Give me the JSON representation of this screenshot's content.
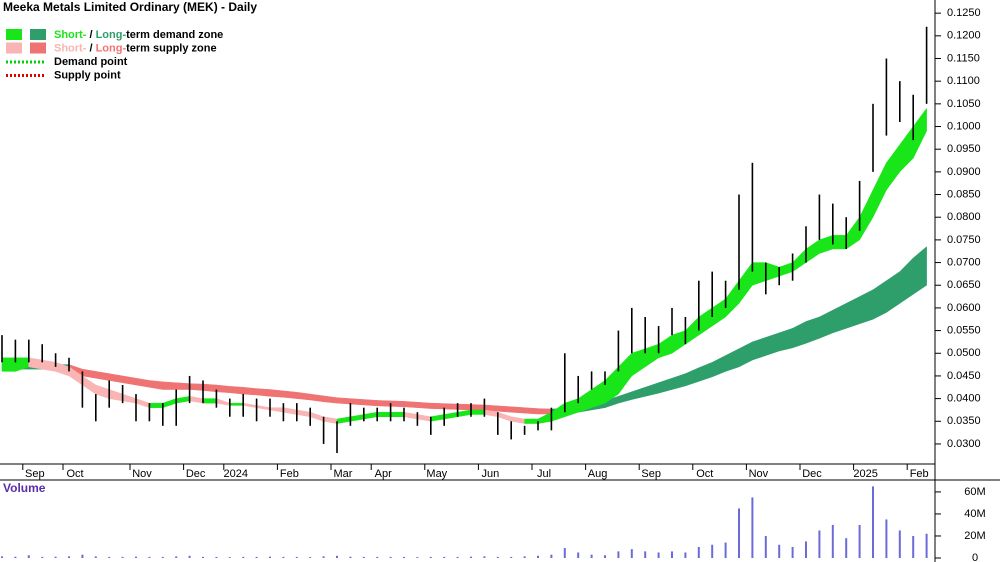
{
  "chart_data": [
    {
      "type": "ohlc",
      "title": "Meeka Metals Limited Ordinary (MEK) - Daily",
      "color": "#000000",
      "categories": [
        null,
        null,
        "Sep",
        null,
        null,
        "Oct",
        null,
        null,
        null,
        null,
        "Nov",
        null,
        null,
        null,
        "Dec",
        null,
        null,
        "2024",
        null,
        null,
        null,
        "Feb",
        null,
        null,
        null,
        "Mar",
        null,
        null,
        "Apr",
        null,
        null,
        null,
        "May",
        null,
        null,
        null,
        "Jun",
        null,
        null,
        null,
        "Jul",
        null,
        null,
        null,
        "Aug",
        null,
        null,
        null,
        "Sep",
        null,
        null,
        null,
        "Oct",
        null,
        null,
        null,
        "Nov",
        null,
        null,
        null,
        "Dec",
        null,
        null,
        null,
        "2025",
        null,
        null,
        null,
        "Feb",
        null
      ],
      "high": [
        0.054,
        0.053,
        0.053,
        0.052,
        0.05,
        0.049,
        0.046,
        0.041,
        0.044,
        0.043,
        0.041,
        0.039,
        0.039,
        0.042,
        0.045,
        0.044,
        0.042,
        0.04,
        0.041,
        0.04,
        0.04,
        0.039,
        0.039,
        0.038,
        0.036,
        0.035,
        0.039,
        0.038,
        0.038,
        0.039,
        0.038,
        0.037,
        0.036,
        0.038,
        0.039,
        0.039,
        0.04,
        0.037,
        0.035,
        0.034,
        0.035,
        0.038,
        0.05,
        0.045,
        0.046,
        0.046,
        0.055,
        0.06,
        0.058,
        0.056,
        0.06,
        0.058,
        0.066,
        0.068,
        0.066,
        0.085,
        0.092,
        0.07,
        0.069,
        0.072,
        0.078,
        0.085,
        0.083,
        0.08,
        0.088,
        0.105,
        0.115,
        0.11,
        0.107,
        0.122
      ],
      "low": [
        0.048,
        0.048,
        0.048,
        0.048,
        0.047,
        0.046,
        0.038,
        0.035,
        0.038,
        0.039,
        0.035,
        0.035,
        0.034,
        0.034,
        0.039,
        0.039,
        0.038,
        0.036,
        0.036,
        0.035,
        0.036,
        0.035,
        0.035,
        0.034,
        0.03,
        0.028,
        0.034,
        0.035,
        0.035,
        0.035,
        0.035,
        0.034,
        0.032,
        0.034,
        0.036,
        0.036,
        0.036,
        0.032,
        0.031,
        0.032,
        0.033,
        0.033,
        0.037,
        0.039,
        0.042,
        0.043,
        0.046,
        0.05,
        0.05,
        0.05,
        0.054,
        0.052,
        0.055,
        0.058,
        0.06,
        0.064,
        0.068,
        0.063,
        0.065,
        0.066,
        0.07,
        0.075,
        0.074,
        0.073,
        0.077,
        0.09,
        0.098,
        0.101,
        0.097,
        0.105
      ],
      "short_zone": {
        "upper": [
          0.049,
          0.049,
          0.049,
          0.0485,
          0.048,
          0.047,
          0.045,
          0.043,
          0.042,
          0.041,
          0.04,
          0.039,
          0.039,
          0.04,
          0.0405,
          0.04,
          0.04,
          0.039,
          0.039,
          0.0385,
          0.038,
          0.038,
          0.0375,
          0.037,
          0.036,
          0.0355,
          0.036,
          0.0365,
          0.037,
          0.037,
          0.037,
          0.0365,
          0.036,
          0.0365,
          0.037,
          0.0375,
          0.0375,
          0.037,
          0.036,
          0.0355,
          0.0355,
          0.037,
          0.039,
          0.04,
          0.042,
          0.044,
          0.047,
          0.05,
          0.051,
          0.052,
          0.054,
          0.055,
          0.058,
          0.06,
          0.062,
          0.066,
          0.07,
          0.07,
          0.069,
          0.07,
          0.073,
          0.075,
          0.076,
          0.076,
          0.08,
          0.086,
          0.092,
          0.096,
          0.1,
          0.104
        ],
        "lower": [
          0.046,
          0.046,
          0.047,
          0.0465,
          0.046,
          0.045,
          0.043,
          0.041,
          0.04,
          0.0395,
          0.039,
          0.038,
          0.038,
          0.039,
          0.0395,
          0.039,
          0.039,
          0.0385,
          0.0385,
          0.038,
          0.0375,
          0.037,
          0.0365,
          0.036,
          0.035,
          0.0345,
          0.035,
          0.0355,
          0.036,
          0.036,
          0.036,
          0.0355,
          0.035,
          0.0355,
          0.036,
          0.0365,
          0.0365,
          0.036,
          0.035,
          0.0345,
          0.0345,
          0.035,
          0.036,
          0.037,
          0.038,
          0.039,
          0.041,
          0.045,
          0.047,
          0.049,
          0.05,
          0.052,
          0.054,
          0.056,
          0.058,
          0.061,
          0.065,
          0.066,
          0.067,
          0.068,
          0.07,
          0.072,
          0.073,
          0.073,
          0.075,
          0.08,
          0.086,
          0.09,
          0.093,
          0.099
        ]
      },
      "long_zone": {
        "upper": [
          0.0475,
          0.0475,
          0.0475,
          0.0475,
          0.0475,
          0.0475,
          0.0465,
          0.046,
          0.0455,
          0.045,
          0.0445,
          0.044,
          0.0437,
          0.0435,
          0.0433,
          0.0432,
          0.043,
          0.0427,
          0.0425,
          0.0422,
          0.042,
          0.0417,
          0.0414,
          0.041,
          0.0406,
          0.0402,
          0.04,
          0.0398,
          0.0396,
          0.0395,
          0.0394,
          0.0392,
          0.039,
          0.0389,
          0.0388,
          0.0387,
          0.0386,
          0.0384,
          0.0382,
          0.038,
          0.0378,
          0.0377,
          0.0378,
          0.0382,
          0.0388,
          0.0395,
          0.0405,
          0.0415,
          0.0425,
          0.0435,
          0.0445,
          0.0455,
          0.0468,
          0.048,
          0.0495,
          0.051,
          0.0525,
          0.0535,
          0.0545,
          0.0555,
          0.057,
          0.058,
          0.0595,
          0.061,
          0.0625,
          0.064,
          0.066,
          0.068,
          0.071,
          0.0735
        ],
        "lower": [
          0.0465,
          0.0465,
          0.0465,
          0.0465,
          0.0465,
          0.0465,
          0.045,
          0.0445,
          0.044,
          0.0435,
          0.043,
          0.0425,
          0.042,
          0.042,
          0.042,
          0.0418,
          0.0415,
          0.0413,
          0.041,
          0.0408,
          0.0405,
          0.0403,
          0.04,
          0.0397,
          0.0393,
          0.039,
          0.0388,
          0.0386,
          0.0384,
          0.0383,
          0.0382,
          0.038,
          0.0378,
          0.0377,
          0.0376,
          0.0375,
          0.0374,
          0.0372,
          0.037,
          0.0368,
          0.0366,
          0.0366,
          0.0368,
          0.037,
          0.0375,
          0.038,
          0.039,
          0.0398,
          0.0405,
          0.0412,
          0.042,
          0.0428,
          0.0438,
          0.0448,
          0.046,
          0.047,
          0.0485,
          0.0495,
          0.0505,
          0.0512,
          0.0522,
          0.0533,
          0.0545,
          0.0555,
          0.0565,
          0.0575,
          0.059,
          0.061,
          0.063,
          0.065
        ]
      },
      "colors": {
        "short_demand": "#19e619",
        "long_demand": "#2e9e6b",
        "short_supply": "#f9b4b4",
        "long_supply": "#f07373"
      },
      "legend": [
        {
          "parts": [
            "Short-",
            " / ",
            "Long-",
            "term demand zone"
          ],
          "part_colors": [
            "#19e619",
            "#000000",
            "#2e9e6b",
            "#000000"
          ],
          "swatches": [
            "#19e619",
            "#2e9e6b"
          ]
        },
        {
          "parts": [
            "Short-",
            " / ",
            "Long-",
            "term supply zone"
          ],
          "part_colors": [
            "#f9b4b4",
            "#000000",
            "#f07373",
            "#000000"
          ],
          "swatches": [
            "#f9b4b4",
            "#f07373"
          ]
        },
        {
          "label": "Demand point",
          "color": "#00d000"
        },
        {
          "label": "Supply point",
          "color": "#e00000"
        }
      ],
      "ylim": [
        0.0258,
        0.1279
      ],
      "yticks": [
        {
          "value": 0.03,
          "label": "0.0300"
        },
        {
          "value": 0.035,
          "label": "0.0350"
        },
        {
          "value": 0.04,
          "label": "0.0400"
        },
        {
          "value": 0.045,
          "label": "0.0450"
        },
        {
          "value": 0.05,
          "label": "0.0500"
        },
        {
          "value": 0.055,
          "label": "0.0550"
        },
        {
          "value": 0.06,
          "label": "0.0600"
        },
        {
          "value": 0.065,
          "label": "0.0650"
        },
        {
          "value": 0.07,
          "label": "0.0700"
        },
        {
          "value": 0.075,
          "label": "0.0750"
        },
        {
          "value": 0.08,
          "label": "0.0800"
        },
        {
          "value": 0.085,
          "label": "0.0850"
        },
        {
          "value": 0.09,
          "label": "0.0900"
        },
        {
          "value": 0.095,
          "label": "0.0950"
        },
        {
          "value": 0.1,
          "label": "0.1000"
        },
        {
          "value": 0.105,
          "label": "0.1050"
        },
        {
          "value": 0.11,
          "label": "0.1100"
        },
        {
          "value": 0.115,
          "label": "0.1150"
        },
        {
          "value": 0.12,
          "label": "0.1200"
        },
        {
          "value": 0.125,
          "label": "0.1250"
        }
      ]
    },
    {
      "type": "bar",
      "title": "Volume",
      "color": "#6a6ad8",
      "values": [
        1500000,
        1200000,
        2500000,
        1000000,
        1200000,
        1500000,
        3000000,
        1500000,
        1000000,
        1000000,
        1200000,
        1000000,
        1000000,
        1500000,
        2000000,
        1000000,
        1000000,
        800000,
        1000000,
        1000000,
        1200000,
        1000000,
        1000000,
        800000,
        1500000,
        2000000,
        1200000,
        1000000,
        1000000,
        1000000,
        1000000,
        800000,
        1000000,
        1000000,
        1000000,
        1200000,
        1500000,
        1000000,
        1000000,
        1500000,
        2000000,
        3000000,
        9000000,
        5000000,
        3000000,
        2500000,
        6000000,
        8000000,
        6000000,
        5000000,
        6000000,
        5000000,
        10000000,
        12000000,
        14000000,
        45000000,
        55000000,
        20000000,
        12000000,
        10000000,
        15000000,
        25000000,
        30000000,
        18000000,
        30000000,
        65000000,
        35000000,
        25000000,
        20000000,
        22000000
      ],
      "ylim": [
        0,
        69000000
      ],
      "yticks": [
        0,
        {
          "value": 20000000,
          "label": "20M"
        },
        {
          "value": 40000000,
          "label": "40M"
        },
        {
          "value": 60000000,
          "label": "60M"
        }
      ]
    }
  ]
}
